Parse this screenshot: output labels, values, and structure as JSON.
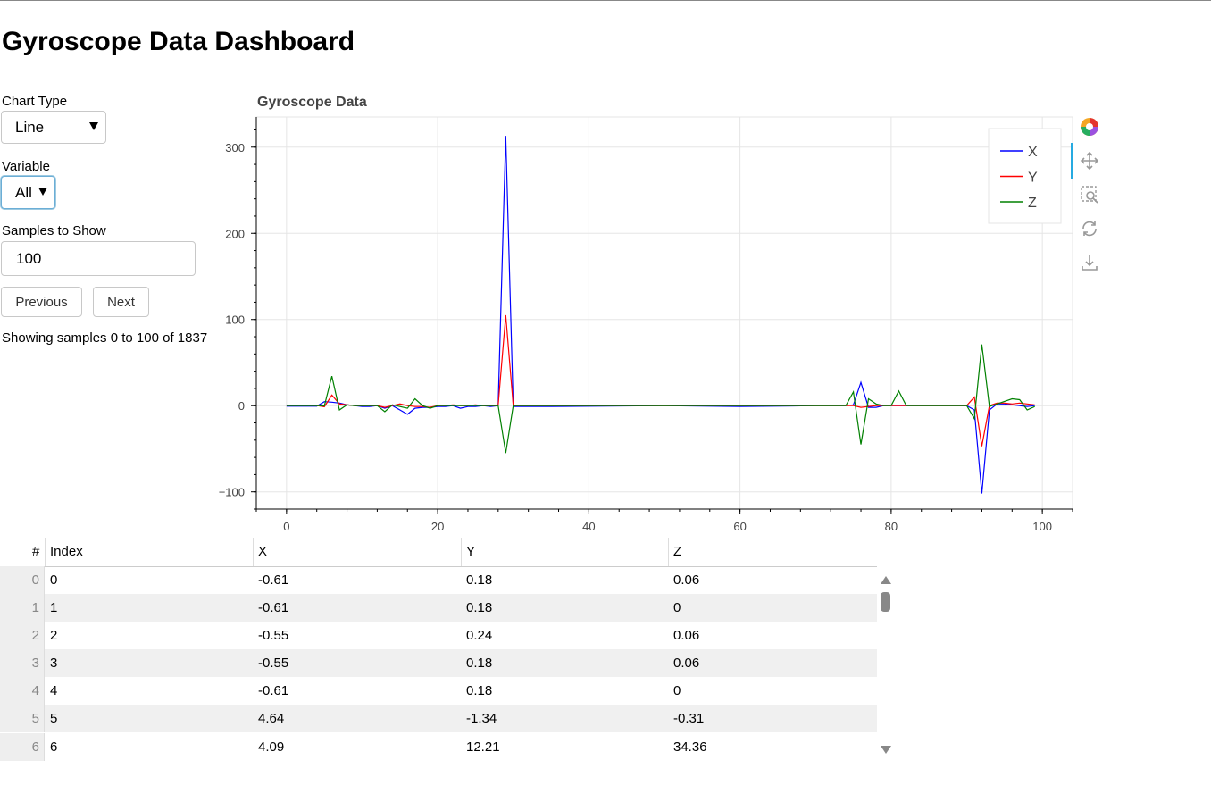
{
  "page": {
    "title": "Gyroscope Data Dashboard"
  },
  "controls": {
    "chart_type": {
      "label": "Chart Type",
      "value": "Line"
    },
    "variable": {
      "label": "Variable",
      "value": "All"
    },
    "samples": {
      "label": "Samples to Show",
      "value": "100"
    },
    "previous_label": "Previous",
    "next_label": "Next",
    "status": "Showing samples 0 to 100 of 1837"
  },
  "chart_data": {
    "type": "line",
    "title": "Gyroscope Data",
    "xlim": [
      -4,
      104
    ],
    "ylim": [
      -120,
      335
    ],
    "xticks": [
      0,
      20,
      40,
      60,
      80,
      100
    ],
    "yticks": [
      -100,
      0,
      100,
      200,
      300
    ],
    "ytick_labels": [
      "−100",
      "0",
      "100",
      "200",
      "300"
    ],
    "grid": true,
    "legend_position": "top-right",
    "series": [
      {
        "name": "X",
        "color": "#0000ff",
        "points": [
          [
            0,
            -0.61
          ],
          [
            1,
            -0.61
          ],
          [
            2,
            -0.55
          ],
          [
            3,
            -0.55
          ],
          [
            4,
            -0.61
          ],
          [
            5,
            4.64
          ],
          [
            6,
            4.09
          ],
          [
            7,
            3
          ],
          [
            8,
            1
          ],
          [
            9,
            0
          ],
          [
            10,
            -1
          ],
          [
            11,
            -1
          ],
          [
            12,
            0
          ],
          [
            13,
            -3
          ],
          [
            14,
            0
          ],
          [
            15,
            -5
          ],
          [
            16,
            -10
          ],
          [
            17,
            -3
          ],
          [
            18,
            -2
          ],
          [
            19,
            -2
          ],
          [
            20,
            -1
          ],
          [
            21,
            -1
          ],
          [
            22,
            0
          ],
          [
            23,
            -3
          ],
          [
            24,
            -1
          ],
          [
            25,
            -1
          ],
          [
            26,
            0
          ],
          [
            27,
            -1
          ],
          [
            28,
            0
          ],
          [
            29,
            313
          ],
          [
            30,
            -1
          ],
          [
            35,
            -1
          ],
          [
            50,
            0
          ],
          [
            60,
            -1
          ],
          [
            70,
            0
          ],
          [
            74,
            0
          ],
          [
            75,
            1
          ],
          [
            76,
            27
          ],
          [
            77,
            -2
          ],
          [
            78,
            -2
          ],
          [
            79,
            0
          ],
          [
            80,
            0
          ],
          [
            85,
            0
          ],
          [
            90,
            0
          ],
          [
            91,
            -5
          ],
          [
            92,
            -102
          ],
          [
            93,
            -5
          ],
          [
            94,
            2
          ],
          [
            95,
            2
          ],
          [
            96,
            1
          ],
          [
            97,
            0
          ],
          [
            98,
            -1
          ],
          [
            99,
            0
          ]
        ]
      },
      {
        "name": "Y",
        "color": "#ff0000",
        "points": [
          [
            0,
            0.18
          ],
          [
            1,
            0.18
          ],
          [
            2,
            0.24
          ],
          [
            3,
            0.18
          ],
          [
            4,
            0.18
          ],
          [
            5,
            -1.34
          ],
          [
            6,
            12.21
          ],
          [
            7,
            2
          ],
          [
            8,
            1
          ],
          [
            9,
            0
          ],
          [
            10,
            0
          ],
          [
            11,
            0
          ],
          [
            12,
            0
          ],
          [
            13,
            -2
          ],
          [
            14,
            0
          ],
          [
            15,
            2
          ],
          [
            16,
            0
          ],
          [
            17,
            -1
          ],
          [
            18,
            -1
          ],
          [
            19,
            -2
          ],
          [
            20,
            0
          ],
          [
            21,
            0
          ],
          [
            22,
            1
          ],
          [
            23,
            0
          ],
          [
            24,
            0
          ],
          [
            25,
            1
          ],
          [
            26,
            0
          ],
          [
            27,
            0
          ],
          [
            28,
            0
          ],
          [
            29,
            105
          ],
          [
            30,
            0
          ],
          [
            35,
            0
          ],
          [
            50,
            0
          ],
          [
            60,
            0
          ],
          [
            70,
            0
          ],
          [
            75,
            0
          ],
          [
            76,
            -2
          ],
          [
            77,
            -1
          ],
          [
            78,
            0
          ],
          [
            79,
            0
          ],
          [
            80,
            0
          ],
          [
            85,
            0
          ],
          [
            90,
            0
          ],
          [
            91,
            10
          ],
          [
            92,
            -47
          ],
          [
            93,
            0
          ],
          [
            94,
            3
          ],
          [
            95,
            3
          ],
          [
            96,
            2
          ],
          [
            97,
            3
          ],
          [
            98,
            2
          ],
          [
            99,
            1
          ]
        ]
      },
      {
        "name": "Z",
        "color": "#008000",
        "points": [
          [
            0,
            0.06
          ],
          [
            1,
            0
          ],
          [
            2,
            0.06
          ],
          [
            3,
            0.06
          ],
          [
            4,
            0
          ],
          [
            5,
            -0.31
          ],
          [
            6,
            34.36
          ],
          [
            7,
            -5
          ],
          [
            8,
            1
          ],
          [
            9,
            0
          ],
          [
            10,
            0
          ],
          [
            11,
            0
          ],
          [
            12,
            0
          ],
          [
            13,
            -7
          ],
          [
            14,
            1
          ],
          [
            15,
            -1
          ],
          [
            16,
            -3
          ],
          [
            17,
            8
          ],
          [
            18,
            0
          ],
          [
            19,
            -3
          ],
          [
            20,
            0
          ],
          [
            21,
            0
          ],
          [
            22,
            0
          ],
          [
            23,
            0
          ],
          [
            24,
            0
          ],
          [
            25,
            0
          ],
          [
            26,
            0
          ],
          [
            27,
            0
          ],
          [
            28,
            0
          ],
          [
            29,
            -55
          ],
          [
            30,
            0
          ],
          [
            35,
            0
          ],
          [
            50,
            0
          ],
          [
            60,
            0
          ],
          [
            70,
            0
          ],
          [
            74,
            0
          ],
          [
            75,
            16
          ],
          [
            76,
            -45
          ],
          [
            77,
            8
          ],
          [
            78,
            2
          ],
          [
            79,
            0
          ],
          [
            80,
            0
          ],
          [
            81,
            17
          ],
          [
            82,
            0
          ],
          [
            85,
            0
          ],
          [
            90,
            0
          ],
          [
            91,
            -15
          ],
          [
            92,
            71
          ],
          [
            93,
            -1
          ],
          [
            94,
            2
          ],
          [
            95,
            5
          ],
          [
            96,
            8
          ],
          [
            97,
            7
          ],
          [
            98,
            -5
          ],
          [
            99,
            -1
          ]
        ]
      }
    ]
  },
  "toolbar": {
    "tools": [
      "bokeh-logo-icon",
      "pan-icon",
      "box-zoom-icon",
      "reset-icon",
      "save-icon"
    ]
  },
  "table": {
    "headers": [
      "#",
      "Index",
      "X",
      "Y",
      "Z"
    ],
    "rows": [
      [
        "0",
        "0",
        "-0.61",
        "0.18",
        "0.06"
      ],
      [
        "1",
        "1",
        "-0.61",
        "0.18",
        "0"
      ],
      [
        "2",
        "2",
        "-0.55",
        "0.24",
        "0.06"
      ],
      [
        "3",
        "3",
        "-0.55",
        "0.18",
        "0.06"
      ],
      [
        "4",
        "4",
        "-0.61",
        "0.18",
        "0"
      ],
      [
        "5",
        "5",
        "4.64",
        "-1.34",
        "-0.31"
      ],
      [
        "6",
        "6",
        "4.09",
        "12.21",
        "34.36"
      ]
    ]
  }
}
